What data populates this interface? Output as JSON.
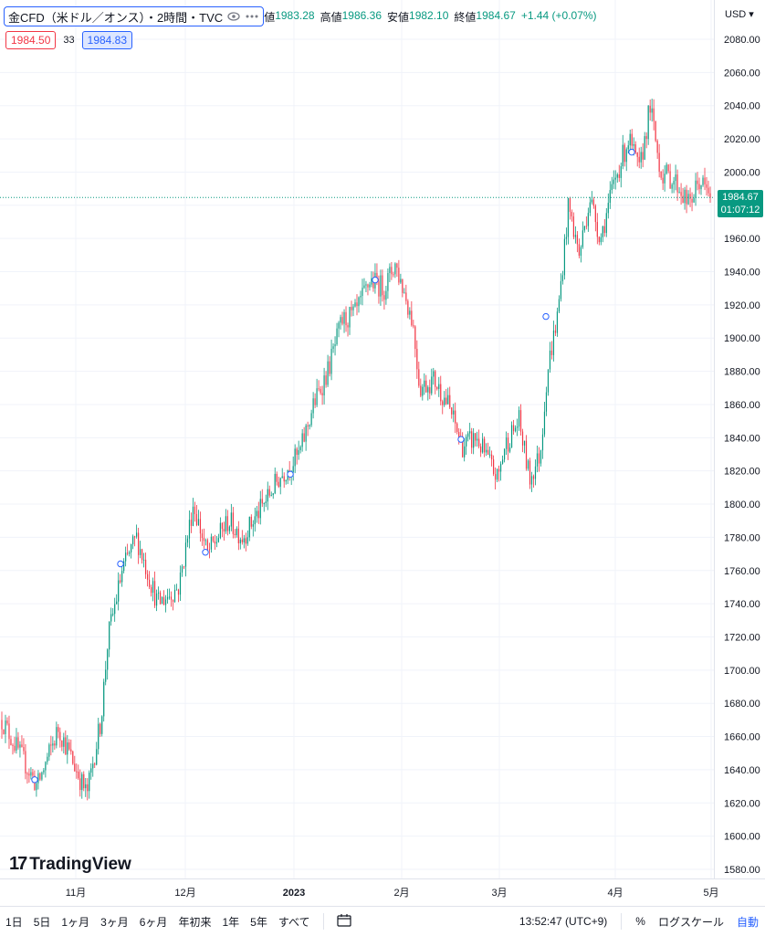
{
  "legend": {
    "symbol_title": "金CFD（米ドル／オンス）・2時間・TVC",
    "open_label": "値",
    "open_value": "1983.28",
    "high_label": "高値",
    "high_value": "1986.36",
    "low_label": "安値",
    "low_value": "1982.10",
    "close_label": "終値",
    "close_value": "1984.67",
    "change": "+1.44 (+0.07%)",
    "icons": [
      "eye-icon",
      "more-icon"
    ]
  },
  "bid_ask": {
    "bid": "1984.50",
    "spread": "33",
    "ask": "1984.83"
  },
  "axis": {
    "currency": "USD"
  },
  "last_price": {
    "price": "1984.67",
    "countdown": "01:07:12"
  },
  "brand": {
    "name": "TradingView"
  },
  "toolbar": {
    "timeframes": [
      "1日",
      "5日",
      "1ヶ月",
      "3ヶ月",
      "6ヶ月",
      "年初来",
      "1年",
      "5年",
      "すべて"
    ],
    "clock": "13:52:47 (UTC+9)",
    "percent": "%",
    "log_scale": "ログスケール",
    "auto": "自動"
  },
  "colors": {
    "up": "#089981",
    "down": "#f23645",
    "accent": "#2962ff"
  },
  "chart_data": {
    "type": "candlestick",
    "y_ticks": [
      "2080.00",
      "2060.00",
      "2040.00",
      "2020.00",
      "2000.00",
      "1980.00",
      "1960.00",
      "1940.00",
      "1920.00",
      "1900.00",
      "1880.00",
      "1860.00",
      "1840.00",
      "1820.00",
      "1800.00",
      "1780.00",
      "1760.00",
      "1740.00",
      "1720.00",
      "1700.00",
      "1680.00",
      "1660.00",
      "1640.00",
      "1620.00",
      "1600.00",
      "1580.00"
    ],
    "ylim": [
      1575,
      2090
    ],
    "x_labels": [
      "11月",
      "12月",
      "2023",
      "2月",
      "3月",
      "4月",
      "5月"
    ],
    "trend": [
      {
        "x": 0.0,
        "y": 1670
      },
      {
        "x": 0.05,
        "y": 1630
      },
      {
        "x": 0.08,
        "y": 1665
      },
      {
        "x": 0.12,
        "y": 1625
      },
      {
        "x": 0.14,
        "y": 1670
      },
      {
        "x": 0.15,
        "y": 1720
      },
      {
        "x": 0.17,
        "y": 1760
      },
      {
        "x": 0.19,
        "y": 1780
      },
      {
        "x": 0.22,
        "y": 1740
      },
      {
        "x": 0.25,
        "y": 1750
      },
      {
        "x": 0.27,
        "y": 1800
      },
      {
        "x": 0.29,
        "y": 1770
      },
      {
        "x": 0.32,
        "y": 1790
      },
      {
        "x": 0.34,
        "y": 1780
      },
      {
        "x": 0.37,
        "y": 1800
      },
      {
        "x": 0.39,
        "y": 1815
      },
      {
        "x": 0.42,
        "y": 1830
      },
      {
        "x": 0.44,
        "y": 1860
      },
      {
        "x": 0.46,
        "y": 1880
      },
      {
        "x": 0.48,
        "y": 1910
      },
      {
        "x": 0.5,
        "y": 1915
      },
      {
        "x": 0.52,
        "y": 1935
      },
      {
        "x": 0.54,
        "y": 1930
      },
      {
        "x": 0.555,
        "y": 1945
      },
      {
        "x": 0.57,
        "y": 1925
      },
      {
        "x": 0.58,
        "y": 1910
      },
      {
        "x": 0.59,
        "y": 1870
      },
      {
        "x": 0.61,
        "y": 1875
      },
      {
        "x": 0.63,
        "y": 1860
      },
      {
        "x": 0.65,
        "y": 1835
      },
      {
        "x": 0.67,
        "y": 1840
      },
      {
        "x": 0.7,
        "y": 1815
      },
      {
        "x": 0.71,
        "y": 1835
      },
      {
        "x": 0.73,
        "y": 1850
      },
      {
        "x": 0.745,
        "y": 1815
      },
      {
        "x": 0.76,
        "y": 1830
      },
      {
        "x": 0.77,
        "y": 1880
      },
      {
        "x": 0.785,
        "y": 1915
      },
      {
        "x": 0.8,
        "y": 1980
      },
      {
        "x": 0.815,
        "y": 1950
      },
      {
        "x": 0.83,
        "y": 1985
      },
      {
        "x": 0.845,
        "y": 1960
      },
      {
        "x": 0.865,
        "y": 1995
      },
      {
        "x": 0.885,
        "y": 2020
      },
      {
        "x": 0.9,
        "y": 2000
      },
      {
        "x": 0.915,
        "y": 2040
      },
      {
        "x": 0.93,
        "y": 2000
      },
      {
        "x": 0.95,
        "y": 1995
      },
      {
        "x": 0.97,
        "y": 1980
      },
      {
        "x": 0.985,
        "y": 1995
      },
      {
        "x": 1.0,
        "y": 1984.67
      }
    ]
  }
}
